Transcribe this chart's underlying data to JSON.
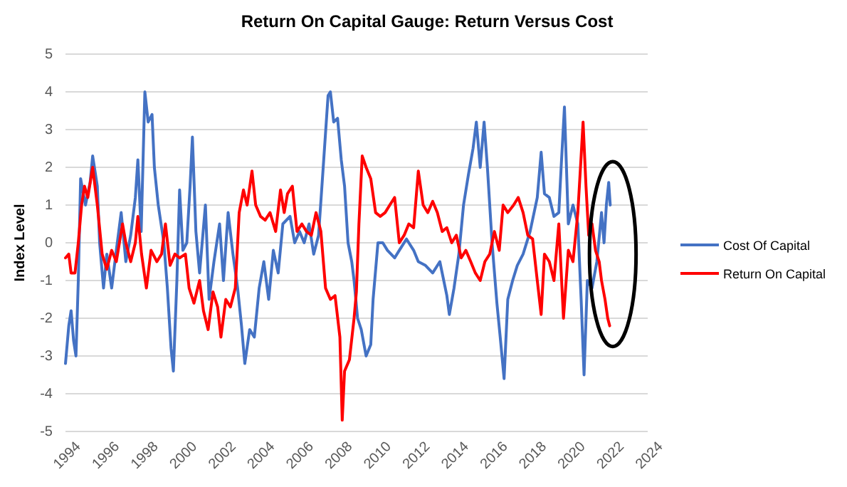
{
  "chart_data": {
    "type": "line",
    "title": "Return On Capital Gauge: Return Versus Cost",
    "ylabel": "Index Level",
    "xlim": [
      1994,
      2024
    ],
    "xticks": [
      1994,
      1996,
      1998,
      2000,
      2002,
      2004,
      2006,
      2008,
      2010,
      2012,
      2014,
      2016,
      2018,
      2020,
      2022,
      2024
    ],
    "ylim": [
      -5,
      5
    ],
    "yticks": [
      -5,
      -4,
      -3,
      -2,
      -1,
      0,
      1,
      2,
      3,
      4,
      5
    ],
    "grid": "y",
    "legend": "right",
    "line_style": "solid",
    "marker": "none",
    "series": [
      {
        "name": "Cost Of Capital",
        "color": "#4472c4",
        "x": [
          1994.0,
          1994.17,
          1994.29,
          1994.42,
          1994.54,
          1994.66,
          1994.78,
          1995.03,
          1995.27,
          1995.4,
          1995.64,
          1995.76,
          1995.96,
          1996.13,
          1996.38,
          1996.62,
          1996.87,
          1997.11,
          1997.36,
          1997.6,
          1997.73,
          1997.9,
          1998.09,
          1998.26,
          1998.46,
          1998.58,
          1998.78,
          1999.07,
          1999.25,
          1999.44,
          1999.56,
          1999.74,
          1999.88,
          2000.05,
          2000.25,
          2000.42,
          2000.54,
          2000.72,
          2000.91,
          2001.21,
          2001.4,
          2001.65,
          2001.94,
          2002.14,
          2002.38,
          2002.63,
          2002.87,
          2003.07,
          2003.24,
          2003.49,
          2003.73,
          2003.98,
          2004.22,
          2004.47,
          2004.71,
          2004.96,
          2005.2,
          2005.57,
          2005.81,
          2006.06,
          2006.3,
          2006.55,
          2006.79,
          2007.04,
          2007.28,
          2007.53,
          2007.65,
          2007.82,
          2008.02,
          2008.21,
          2008.38,
          2008.56,
          2008.75,
          2008.87,
          2009.05,
          2009.24,
          2009.49,
          2009.73,
          2009.85,
          2010.1,
          2010.35,
          2010.59,
          2010.96,
          2011.2,
          2011.57,
          2011.94,
          2012.18,
          2012.55,
          2012.92,
          2013.29,
          2013.65,
          2013.78,
          2014.02,
          2014.27,
          2014.51,
          2014.76,
          2015.0,
          2015.17,
          2015.37,
          2015.57,
          2015.74,
          2015.98,
          2016.23,
          2016.4,
          2016.6,
          2016.79,
          2017.04,
          2017.28,
          2017.58,
          2017.94,
          2018.31,
          2018.51,
          2018.68,
          2018.93,
          2019.17,
          2019.42,
          2019.54,
          2019.71,
          2019.91,
          2020.15,
          2020.4,
          2020.57,
          2020.72,
          2020.89,
          2021.13,
          2021.38,
          2021.62,
          2021.75,
          2021.87,
          2021.99,
          2022.07
        ],
        "values": [
          -3.2,
          -2.2,
          -1.8,
          -2.6,
          -3.0,
          -1.0,
          1.7,
          1.0,
          1.6,
          2.3,
          1.5,
          0.0,
          -1.2,
          -0.3,
          -1.2,
          -0.2,
          0.8,
          -0.5,
          0.2,
          1.2,
          2.2,
          0.3,
          4.0,
          3.2,
          3.4,
          2.0,
          1.0,
          0.0,
          -1.2,
          -2.8,
          -3.4,
          -1.0,
          1.4,
          -0.2,
          0.0,
          1.5,
          2.8,
          0.3,
          -0.8,
          1.0,
          -1.5,
          -0.5,
          0.5,
          -1.0,
          0.8,
          -0.3,
          -1.2,
          -2.2,
          -3.2,
          -2.3,
          -2.5,
          -1.2,
          -0.5,
          -1.5,
          -0.2,
          -0.8,
          0.5,
          0.7,
          0.0,
          0.3,
          0.0,
          0.5,
          -0.3,
          0.2,
          2.0,
          3.9,
          4.0,
          3.2,
          3.3,
          2.2,
          1.5,
          0.0,
          -0.5,
          -1.0,
          -2.0,
          -2.3,
          -3.0,
          -2.7,
          -1.5,
          0.0,
          0.0,
          -0.2,
          -0.4,
          -0.2,
          0.1,
          -0.2,
          -0.5,
          -0.6,
          -0.8,
          -0.5,
          -1.4,
          -1.9,
          -1.2,
          -0.3,
          1.0,
          1.8,
          2.5,
          3.2,
          2.0,
          3.2,
          2.0,
          0.0,
          -1.6,
          -2.5,
          -3.6,
          -1.5,
          -1.0,
          -0.6,
          -0.3,
          0.3,
          1.2,
          2.4,
          1.3,
          1.2,
          0.7,
          0.8,
          2.0,
          3.6,
          0.5,
          1.0,
          0.5,
          -1.5,
          -3.5,
          -1.0,
          -1.2,
          -0.5,
          0.8,
          0.0,
          1.0,
          1.6,
          1.0
        ]
      },
      {
        "name": "Return On Capital",
        "color": "#ff0000",
        "x": [
          1994.0,
          1994.17,
          1994.29,
          1994.49,
          1994.66,
          1994.83,
          1994.98,
          1995.15,
          1995.4,
          1995.64,
          1995.89,
          1996.13,
          1996.38,
          1996.62,
          1996.94,
          1997.11,
          1997.36,
          1997.6,
          1997.73,
          1997.92,
          1998.17,
          1998.41,
          1998.71,
          1998.95,
          1999.15,
          1999.39,
          1999.64,
          1999.88,
          2000.18,
          2000.37,
          2000.62,
          2000.91,
          2001.11,
          2001.35,
          2001.6,
          2001.84,
          2002.01,
          2002.26,
          2002.5,
          2002.75,
          2002.95,
          2003.17,
          2003.36,
          2003.61,
          2003.8,
          2004.05,
          2004.29,
          2004.54,
          2004.83,
          2005.08,
          2005.27,
          2005.44,
          2005.69,
          2005.93,
          2006.18,
          2006.42,
          2006.67,
          2006.91,
          2007.16,
          2007.4,
          2007.65,
          2007.89,
          2008.14,
          2008.26,
          2008.38,
          2008.63,
          2008.87,
          2008.99,
          2009.12,
          2009.29,
          2009.49,
          2009.73,
          2009.98,
          2010.22,
          2010.47,
          2010.71,
          2010.96,
          2011.2,
          2011.45,
          2011.69,
          2011.94,
          2012.18,
          2012.43,
          2012.67,
          2012.92,
          2013.16,
          2013.41,
          2013.65,
          2013.9,
          2014.14,
          2014.39,
          2014.63,
          2014.88,
          2015.12,
          2015.37,
          2015.61,
          2015.86,
          2016.1,
          2016.35,
          2016.55,
          2016.79,
          2017.09,
          2017.33,
          2017.58,
          2017.82,
          2018.07,
          2018.31,
          2018.51,
          2018.68,
          2018.93,
          2019.17,
          2019.42,
          2019.66,
          2019.91,
          2020.15,
          2020.4,
          2020.57,
          2020.67,
          2020.82,
          2020.96,
          2021.13,
          2021.31,
          2021.5,
          2021.62,
          2021.8,
          2021.94,
          2022.04
        ],
        "values": [
          -0.4,
          -0.3,
          -0.8,
          -0.8,
          0.0,
          1.0,
          1.5,
          1.2,
          2.0,
          1.0,
          -0.3,
          -0.7,
          -0.2,
          -0.5,
          0.5,
          0.0,
          -0.5,
          0.0,
          0.7,
          -0.3,
          -1.2,
          -0.2,
          -0.5,
          -0.3,
          0.5,
          -0.6,
          -0.3,
          -0.4,
          -0.3,
          -1.2,
          -1.6,
          -1.0,
          -1.8,
          -2.3,
          -1.3,
          -1.7,
          -2.5,
          -1.5,
          -1.7,
          -1.2,
          0.8,
          1.4,
          1.0,
          1.9,
          1.0,
          0.7,
          0.6,
          0.8,
          0.3,
          1.4,
          0.8,
          1.3,
          1.5,
          0.3,
          0.5,
          0.3,
          0.2,
          0.8,
          0.3,
          -1.2,
          -1.5,
          -1.4,
          -2.5,
          -4.7,
          -3.4,
          -3.1,
          -2.0,
          -1.3,
          0.5,
          2.3,
          2.0,
          1.7,
          0.8,
          0.7,
          0.8,
          1.0,
          1.2,
          0.0,
          0.2,
          0.5,
          0.4,
          1.9,
          1.0,
          0.8,
          1.1,
          0.8,
          0.3,
          0.4,
          0.0,
          0.2,
          -0.4,
          -0.2,
          -0.5,
          -0.8,
          -1.0,
          -0.5,
          -0.3,
          0.3,
          -0.2,
          1.0,
          0.8,
          1.0,
          1.2,
          0.8,
          0.2,
          0.1,
          -1.0,
          -1.9,
          -0.3,
          -0.5,
          -1.0,
          0.5,
          -2.0,
          -0.2,
          -0.5,
          0.8,
          2.3,
          3.2,
          1.5,
          0.2,
          0.5,
          -0.2,
          -0.5,
          -1.0,
          -1.5,
          -2.0,
          -2.2
        ]
      }
    ]
  }
}
